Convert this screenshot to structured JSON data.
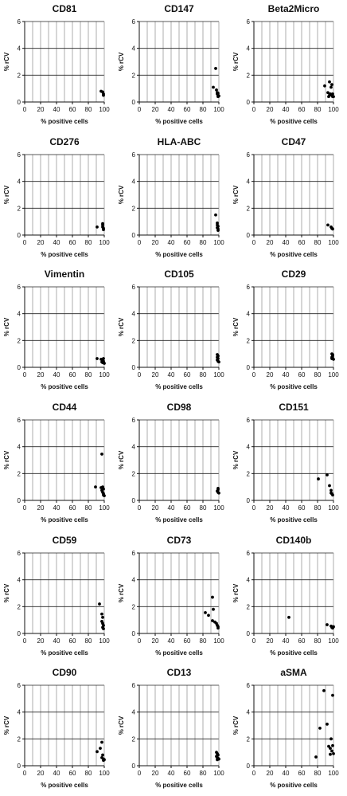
{
  "chart_data": [
    {
      "type": "scatter",
      "title": "CD81",
      "xlabel": "% positive cells",
      "ylabel": "% rCV",
      "xlim": [
        0,
        100
      ],
      "ylim": [
        0,
        6
      ],
      "x_ticks": [
        0,
        20,
        40,
        60,
        80,
        100
      ],
      "y_ticks": [
        0,
        2,
        4,
        6
      ],
      "points": [
        [
          96,
          0.8
        ],
        [
          98,
          0.75
        ],
        [
          99,
          0.6
        ],
        [
          99,
          0.5
        ]
      ]
    },
    {
      "type": "scatter",
      "title": "CD147",
      "xlabel": "% positive cells",
      "ylabel": "% rCV",
      "xlim": [
        0,
        100
      ],
      "ylim": [
        0,
        6
      ],
      "x_ticks": [
        0,
        20,
        40,
        60,
        80,
        100
      ],
      "y_ticks": [
        0,
        2,
        4,
        6
      ],
      "points": [
        [
          96,
          2.5
        ],
        [
          93,
          1.1
        ],
        [
          97,
          0.9
        ],
        [
          98,
          0.7
        ],
        [
          98,
          0.6
        ],
        [
          99,
          0.5
        ],
        [
          99,
          0.4
        ],
        [
          100,
          0.45
        ],
        [
          99,
          0.65
        ]
      ]
    },
    {
      "type": "scatter",
      "title": "Beta2Micro",
      "xlabel": "% positive cells",
      "ylabel": "% rCV",
      "xlim": [
        0,
        100
      ],
      "ylim": [
        0,
        6
      ],
      "x_ticks": [
        0,
        20,
        40,
        60,
        80,
        100
      ],
      "y_ticks": [
        0,
        2,
        4,
        6
      ],
      "points": [
        [
          95,
          1.5
        ],
        [
          98,
          1.3
        ],
        [
          89,
          1.2
        ],
        [
          97,
          1.1
        ],
        [
          93,
          0.7
        ],
        [
          96,
          0.6
        ],
        [
          95,
          0.5
        ],
        [
          98,
          0.5
        ],
        [
          99,
          0.4
        ],
        [
          100,
          0.4
        ],
        [
          94,
          0.4
        ],
        [
          99,
          0.6
        ]
      ]
    },
    {
      "type": "scatter",
      "title": "CD276",
      "xlabel": "% positive cells",
      "ylabel": "% rCV",
      "xlim": [
        0,
        100
      ],
      "ylim": [
        0,
        6
      ],
      "x_ticks": [
        0,
        20,
        40,
        60,
        80,
        100
      ],
      "y_ticks": [
        0,
        2,
        4,
        6
      ],
      "points": [
        [
          91,
          0.6
        ],
        [
          98,
          0.85
        ],
        [
          98,
          0.75
        ],
        [
          98,
          0.6
        ],
        [
          99,
          0.5
        ],
        [
          99,
          0.4
        ]
      ]
    },
    {
      "type": "scatter",
      "title": "HLA-ABC",
      "xlabel": "% positive cells",
      "ylabel": "% rCV",
      "xlim": [
        0,
        100
      ],
      "ylim": [
        0,
        6
      ],
      "x_ticks": [
        0,
        20,
        40,
        60,
        80,
        100
      ],
      "y_ticks": [
        0,
        2,
        4,
        6
      ],
      "points": [
        [
          96,
          1.5
        ],
        [
          98,
          0.9
        ],
        [
          98,
          0.75
        ],
        [
          99,
          0.65
        ],
        [
          98,
          0.55
        ],
        [
          99,
          0.45
        ],
        [
          99,
          0.35
        ]
      ]
    },
    {
      "type": "scatter",
      "title": "CD47",
      "xlabel": "% positive cells",
      "ylabel": "% rCV",
      "xlim": [
        0,
        100
      ],
      "ylim": [
        0,
        6
      ],
      "x_ticks": [
        0,
        20,
        40,
        60,
        80,
        100
      ],
      "y_ticks": [
        0,
        2,
        4,
        6
      ],
      "points": [
        [
          93,
          0.75
        ],
        [
          97,
          0.6
        ],
        [
          98,
          0.5
        ],
        [
          99,
          0.45
        ]
      ]
    },
    {
      "type": "scatter",
      "title": "Vimentin",
      "xlabel": "% positive cells",
      "ylabel": "% rCV",
      "xlim": [
        0,
        100
      ],
      "ylim": [
        0,
        6
      ],
      "x_ticks": [
        0,
        20,
        40,
        60,
        80,
        100
      ],
      "y_ticks": [
        0,
        2,
        4,
        6
      ],
      "points": [
        [
          91,
          0.65
        ],
        [
          96,
          0.6
        ],
        [
          98,
          0.55
        ],
        [
          99,
          0.65
        ],
        [
          99,
          0.45
        ],
        [
          97,
          0.4
        ],
        [
          98,
          0.35
        ],
        [
          100,
          0.3
        ]
      ]
    },
    {
      "type": "scatter",
      "title": "CD105",
      "xlabel": "% positive cells",
      "ylabel": "% rCV",
      "xlim": [
        0,
        100
      ],
      "ylim": [
        0,
        6
      ],
      "x_ticks": [
        0,
        20,
        40,
        60,
        80,
        100
      ],
      "y_ticks": [
        0,
        2,
        4,
        6
      ],
      "points": [
        [
          98,
          0.95
        ],
        [
          99,
          0.85
        ],
        [
          98,
          0.75
        ],
        [
          99,
          0.65
        ],
        [
          98,
          0.55
        ],
        [
          99,
          0.45
        ],
        [
          100,
          0.4
        ]
      ]
    },
    {
      "type": "scatter",
      "title": "CD29",
      "xlabel": "% positive cells",
      "ylabel": "% rCV",
      "xlim": [
        0,
        100
      ],
      "ylim": [
        0,
        6
      ],
      "x_ticks": [
        0,
        20,
        40,
        60,
        80,
        100
      ],
      "y_ticks": [
        0,
        2,
        4,
        6
      ],
      "points": [
        [
          98,
          1.0
        ],
        [
          99,
          0.95
        ],
        [
          99,
          0.85
        ],
        [
          98,
          0.75
        ],
        [
          99,
          0.7
        ],
        [
          100,
          0.6
        ],
        [
          98,
          0.65
        ]
      ]
    },
    {
      "type": "scatter",
      "title": "CD44",
      "xlabel": "% positive cells",
      "ylabel": "% rCV",
      "xlim": [
        0,
        100
      ],
      "ylim": [
        0,
        6
      ],
      "x_ticks": [
        0,
        20,
        40,
        60,
        80,
        100
      ],
      "y_ticks": [
        0,
        2,
        4,
        6
      ],
      "points": [
        [
          97,
          3.45
        ],
        [
          89,
          1.0
        ],
        [
          96,
          0.95
        ],
        [
          98,
          1.0
        ],
        [
          99,
          0.85
        ],
        [
          97,
          0.75
        ],
        [
          98,
          0.6
        ],
        [
          99,
          0.5
        ],
        [
          99,
          0.4
        ],
        [
          100,
          0.35
        ]
      ]
    },
    {
      "type": "scatter",
      "title": "CD98",
      "xlabel": "% positive cells",
      "ylabel": "% rCV",
      "xlim": [
        0,
        100
      ],
      "ylim": [
        0,
        6
      ],
      "x_ticks": [
        0,
        20,
        40,
        60,
        80,
        100
      ],
      "y_ticks": [
        0,
        2,
        4,
        6
      ],
      "points": [
        [
          99,
          0.9
        ],
        [
          99,
          0.8
        ],
        [
          98,
          0.7
        ],
        [
          99,
          0.6
        ],
        [
          100,
          0.55
        ]
      ]
    },
    {
      "type": "scatter",
      "title": "CD151",
      "xlabel": "% positive cells",
      "ylabel": "% rCV",
      "xlim": [
        0,
        100
      ],
      "ylim": [
        0,
        6
      ],
      "x_ticks": [
        0,
        20,
        40,
        60,
        80,
        100
      ],
      "y_ticks": [
        0,
        2,
        4,
        6
      ],
      "points": [
        [
          92,
          1.9
        ],
        [
          81,
          1.6
        ],
        [
          95,
          1.1
        ],
        [
          97,
          0.75
        ],
        [
          97,
          0.55
        ],
        [
          98,
          0.5
        ],
        [
          99,
          0.4
        ]
      ]
    },
    {
      "type": "scatter",
      "title": "CD59",
      "xlabel": "% positive cells",
      "ylabel": "% rCV",
      "xlim": [
        0,
        100
      ],
      "ylim": [
        0,
        6
      ],
      "x_ticks": [
        0,
        20,
        40,
        60,
        80,
        100
      ],
      "y_ticks": [
        0,
        2,
        4,
        6
      ],
      "points": [
        [
          94,
          2.2
        ],
        [
          97,
          1.45
        ],
        [
          98,
          1.2
        ],
        [
          97,
          0.9
        ],
        [
          98,
          0.75
        ],
        [
          99,
          0.6
        ],
        [
          98,
          0.45
        ],
        [
          99,
          0.35
        ]
      ]
    },
    {
      "type": "scatter",
      "title": "CD73",
      "xlabel": "% positive cells",
      "ylabel": "% rCV",
      "xlim": [
        0,
        100
      ],
      "ylim": [
        0,
        6
      ],
      "x_ticks": [
        0,
        20,
        40,
        60,
        80,
        100
      ],
      "y_ticks": [
        0,
        2,
        4,
        6
      ],
      "points": [
        [
          92,
          2.7
        ],
        [
          93,
          1.8
        ],
        [
          83,
          1.55
        ],
        [
          87,
          1.35
        ],
        [
          92,
          0.95
        ],
        [
          95,
          0.85
        ],
        [
          97,
          0.75
        ],
        [
          98,
          0.6
        ],
        [
          99,
          0.5
        ],
        [
          99,
          0.4
        ]
      ]
    },
    {
      "type": "scatter",
      "title": "CD140b",
      "xlabel": "% positive cells",
      "ylabel": "% rCV",
      "xlim": [
        0,
        100
      ],
      "ylim": [
        0,
        6
      ],
      "x_ticks": [
        0,
        20,
        40,
        60,
        80,
        100
      ],
      "y_ticks": [
        0,
        2,
        4,
        6
      ],
      "points": [
        [
          44,
          1.2
        ],
        [
          92,
          0.65
        ],
        [
          97,
          0.55
        ],
        [
          98,
          0.45
        ],
        [
          99,
          0.4
        ],
        [
          100,
          0.5
        ]
      ]
    },
    {
      "type": "scatter",
      "title": "CD90",
      "xlabel": "% positive cells",
      "ylabel": "% rCV",
      "xlim": [
        0,
        100
      ],
      "ylim": [
        0,
        6
      ],
      "x_ticks": [
        0,
        20,
        40,
        60,
        80,
        100
      ],
      "y_ticks": [
        0,
        2,
        4,
        6
      ],
      "points": [
        [
          97,
          1.75
        ],
        [
          95,
          1.3
        ],
        [
          91,
          1.05
        ],
        [
          98,
          0.8
        ],
        [
          97,
          0.6
        ],
        [
          99,
          0.5
        ],
        [
          99,
          0.4
        ],
        [
          100,
          0.45
        ]
      ]
    },
    {
      "type": "scatter",
      "title": "CD13",
      "xlabel": "% positive cells",
      "ylabel": "% rCV",
      "xlim": [
        0,
        100
      ],
      "ylim": [
        0,
        6
      ],
      "x_ticks": [
        0,
        20,
        40,
        60,
        80,
        100
      ],
      "y_ticks": [
        0,
        2,
        4,
        6
      ],
      "points": [
        [
          97,
          1.0
        ],
        [
          98,
          0.9
        ],
        [
          99,
          0.8
        ],
        [
          97,
          0.7
        ],
        [
          98,
          0.6
        ],
        [
          99,
          0.55
        ],
        [
          100,
          0.5
        ],
        [
          98,
          0.45
        ]
      ]
    },
    {
      "type": "scatter",
      "title": "aSMA",
      "xlabel": "% positive cells",
      "ylabel": "% rCV",
      "xlim": [
        0,
        100
      ],
      "ylim": [
        0,
        6
      ],
      "x_ticks": [
        0,
        20,
        40,
        60,
        80,
        100
      ],
      "y_ticks": [
        0,
        2,
        4,
        6
      ],
      "points": [
        [
          88,
          5.6
        ],
        [
          99,
          5.25
        ],
        [
          92,
          3.1
        ],
        [
          83,
          2.8
        ],
        [
          97,
          2.0
        ],
        [
          99,
          1.5
        ],
        [
          94,
          1.45
        ],
        [
          96,
          1.3
        ],
        [
          98,
          1.1
        ],
        [
          100,
          0.9
        ],
        [
          96,
          0.85
        ],
        [
          78,
          0.65
        ]
      ]
    }
  ]
}
